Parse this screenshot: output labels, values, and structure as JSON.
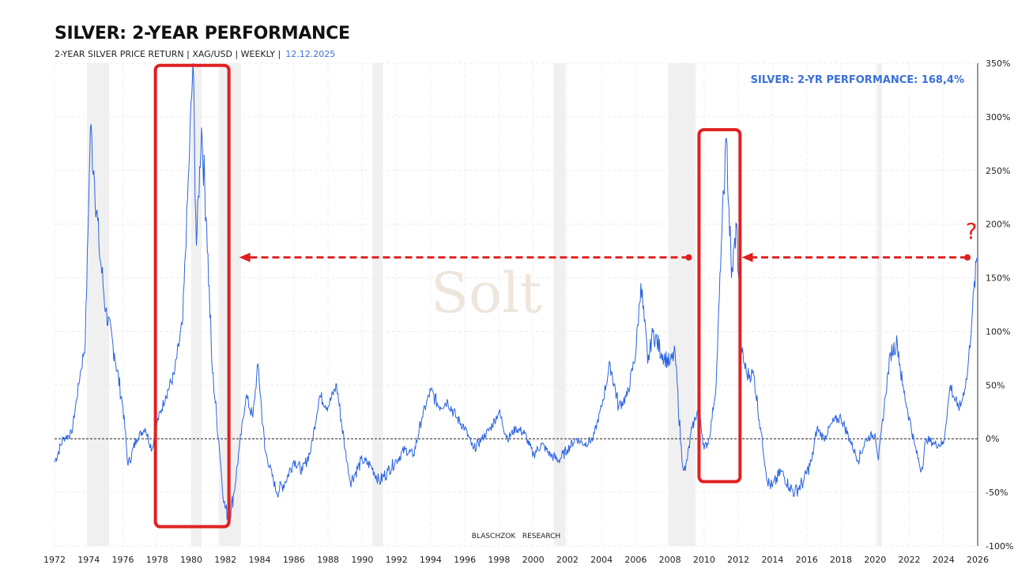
{
  "header": {
    "title": "SILVER: 2-YEAR PERFORMANCE",
    "subtitle": "2-YEAR SILVER PRICE RETURN | XAG/USD | WEEKLY |",
    "date": "12.12.2025"
  },
  "chart_data": {
    "type": "line",
    "title": "SILVER: 2-YEAR PERFORMANCE",
    "xlim": [
      1972,
      2026
    ],
    "ylim": [
      -100,
      350
    ],
    "x_ticks": [
      "1972",
      "1974",
      "1976",
      "1978",
      "1980",
      "1982",
      "1984",
      "1986",
      "1988",
      "1990",
      "1992",
      "1994",
      "1996",
      "1998",
      "2000",
      "2002",
      "2004",
      "2006",
      "2008",
      "2010",
      "2012",
      "2014",
      "2016",
      "2018",
      "2020",
      "2022",
      "2024",
      "2026"
    ],
    "y_ticks": [
      "350%",
      "300%",
      "250%",
      "200%",
      "150%",
      "100%",
      "50%",
      "0%",
      "-50%",
      "-100%"
    ],
    "y_tick_values": [
      350,
      300,
      250,
      200,
      150,
      100,
      50,
      0,
      -50,
      -100
    ],
    "grid": true,
    "line_color": "#2b63e0",
    "series": [
      {
        "points": [
          [
            1972.0,
            -22
          ],
          [
            1972.5,
            0
          ],
          [
            1973.0,
            5
          ],
          [
            1973.5,
            60
          ],
          [
            1973.8,
            90
          ],
          [
            1974.1,
            290
          ],
          [
            1974.3,
            250
          ],
          [
            1974.6,
            180
          ],
          [
            1975.0,
            120
          ],
          [
            1975.5,
            80
          ],
          [
            1976.0,
            30
          ],
          [
            1976.3,
            -25
          ],
          [
            1976.8,
            0
          ],
          [
            1977.3,
            10
          ],
          [
            1977.7,
            -10
          ],
          [
            1978.0,
            15
          ],
          [
            1978.5,
            40
          ],
          [
            1979.0,
            60
          ],
          [
            1979.5,
            110
          ],
          [
            1979.9,
            270
          ],
          [
            1980.1,
            350
          ],
          [
            1980.3,
            180
          ],
          [
            1980.6,
            290
          ],
          [
            1980.9,
            200
          ],
          [
            1981.2,
            70
          ],
          [
            1981.6,
            0
          ],
          [
            1981.9,
            -60
          ],
          [
            1982.2,
            -75
          ],
          [
            1982.5,
            -50
          ],
          [
            1982.8,
            -10
          ],
          [
            1983.2,
            40
          ],
          [
            1983.6,
            20
          ],
          [
            1983.9,
            70
          ],
          [
            1984.3,
            -10
          ],
          [
            1985.0,
            -50
          ],
          [
            1985.5,
            -40
          ],
          [
            1986.0,
            -20
          ],
          [
            1986.5,
            -30
          ],
          [
            1987.0,
            -10
          ],
          [
            1987.5,
            40
          ],
          [
            1988.0,
            30
          ],
          [
            1988.5,
            50
          ],
          [
            1989.0,
            -10
          ],
          [
            1989.3,
            -40
          ],
          [
            1990.0,
            -20
          ],
          [
            1990.5,
            -25
          ],
          [
            1991.0,
            -40
          ],
          [
            1991.5,
            -30
          ],
          [
            1992.0,
            -20
          ],
          [
            1992.5,
            -10
          ],
          [
            1993.0,
            -15
          ],
          [
            1993.5,
            20
          ],
          [
            1994.0,
            45
          ],
          [
            1994.5,
            30
          ],
          [
            1995.0,
            35
          ],
          [
            1995.5,
            20
          ],
          [
            1996.0,
            10
          ],
          [
            1996.5,
            -10
          ],
          [
            1997.0,
            0
          ],
          [
            1997.5,
            10
          ],
          [
            1998.0,
            25
          ],
          [
            1998.5,
            0
          ],
          [
            1999.0,
            10
          ],
          [
            1999.5,
            5
          ],
          [
            2000.0,
            -15
          ],
          [
            2000.5,
            -5
          ],
          [
            2001.0,
            -15
          ],
          [
            2001.5,
            -20
          ],
          [
            2002.0,
            -10
          ],
          [
            2002.5,
            0
          ],
          [
            2003.0,
            -5
          ],
          [
            2003.5,
            0
          ],
          [
            2004.0,
            30
          ],
          [
            2004.5,
            70
          ],
          [
            2005.0,
            30
          ],
          [
            2005.5,
            40
          ],
          [
            2006.0,
            80
          ],
          [
            2006.3,
            145
          ],
          [
            2006.7,
            70
          ],
          [
            2007.0,
            100
          ],
          [
            2007.5,
            80
          ],
          [
            2008.0,
            70
          ],
          [
            2008.3,
            80
          ],
          [
            2008.7,
            -20
          ],
          [
            2008.9,
            -30
          ],
          [
            2009.3,
            10
          ],
          [
            2009.7,
            30
          ],
          [
            2010.0,
            -10
          ],
          [
            2010.3,
            0
          ],
          [
            2010.7,
            50
          ],
          [
            2011.0,
            180
          ],
          [
            2011.3,
            280
          ],
          [
            2011.6,
            150
          ],
          [
            2011.9,
            200
          ],
          [
            2012.2,
            80
          ],
          [
            2012.5,
            60
          ],
          [
            2012.9,
            60
          ],
          [
            2013.3,
            10
          ],
          [
            2013.7,
            -40
          ],
          [
            2014.0,
            -45
          ],
          [
            2014.5,
            -30
          ],
          [
            2015.0,
            -45
          ],
          [
            2015.3,
            -50
          ],
          [
            2015.8,
            -40
          ],
          [
            2016.3,
            -20
          ],
          [
            2016.6,
            10
          ],
          [
            2017.0,
            0
          ],
          [
            2017.5,
            15
          ],
          [
            2018.0,
            20
          ],
          [
            2018.5,
            0
          ],
          [
            2019.0,
            -20
          ],
          [
            2019.5,
            0
          ],
          [
            2020.0,
            5
          ],
          [
            2020.2,
            -20
          ],
          [
            2020.6,
            40
          ],
          [
            2020.9,
            80
          ],
          [
            2021.3,
            90
          ],
          [
            2021.6,
            50
          ],
          [
            2022.0,
            20
          ],
          [
            2022.3,
            -5
          ],
          [
            2022.7,
            -30
          ],
          [
            2023.0,
            0
          ],
          [
            2023.5,
            -5
          ],
          [
            2024.0,
            -5
          ],
          [
            2024.4,
            50
          ],
          [
            2024.8,
            30
          ],
          [
            2025.0,
            30
          ],
          [
            2025.4,
            60
          ],
          [
            2025.7,
            120
          ],
          [
            2025.95,
            168.4
          ]
        ]
      }
    ],
    "shaded_periods": [
      [
        1973.9,
        1975.2
      ],
      [
        1980.0,
        1980.6
      ],
      [
        1981.6,
        1982.9
      ],
      [
        1990.6,
        1991.2
      ],
      [
        2001.2,
        2001.9
      ],
      [
        2007.9,
        2009.5
      ],
      [
        2020.1,
        2020.4
      ]
    ],
    "zero_line": 0,
    "annotations": {
      "label": "SILVER: 2-YR PERFORMANCE: 168,4%",
      "label_color": "#3a6fd8",
      "highlight_boxes": [
        [
          1977.9,
          1982.2,
          -82,
          348
        ],
        [
          2009.7,
          2012.1,
          -40,
          288
        ]
      ],
      "arrows": [
        [
          2009.1,
          1982.8,
          169
        ],
        [
          2025.4,
          2012.2,
          169
        ]
      ],
      "question_mark": "?",
      "accent_color": "#e02020",
      "source": "BLASCHZOK   RESEARCH",
      "watermark": "Solt"
    }
  }
}
